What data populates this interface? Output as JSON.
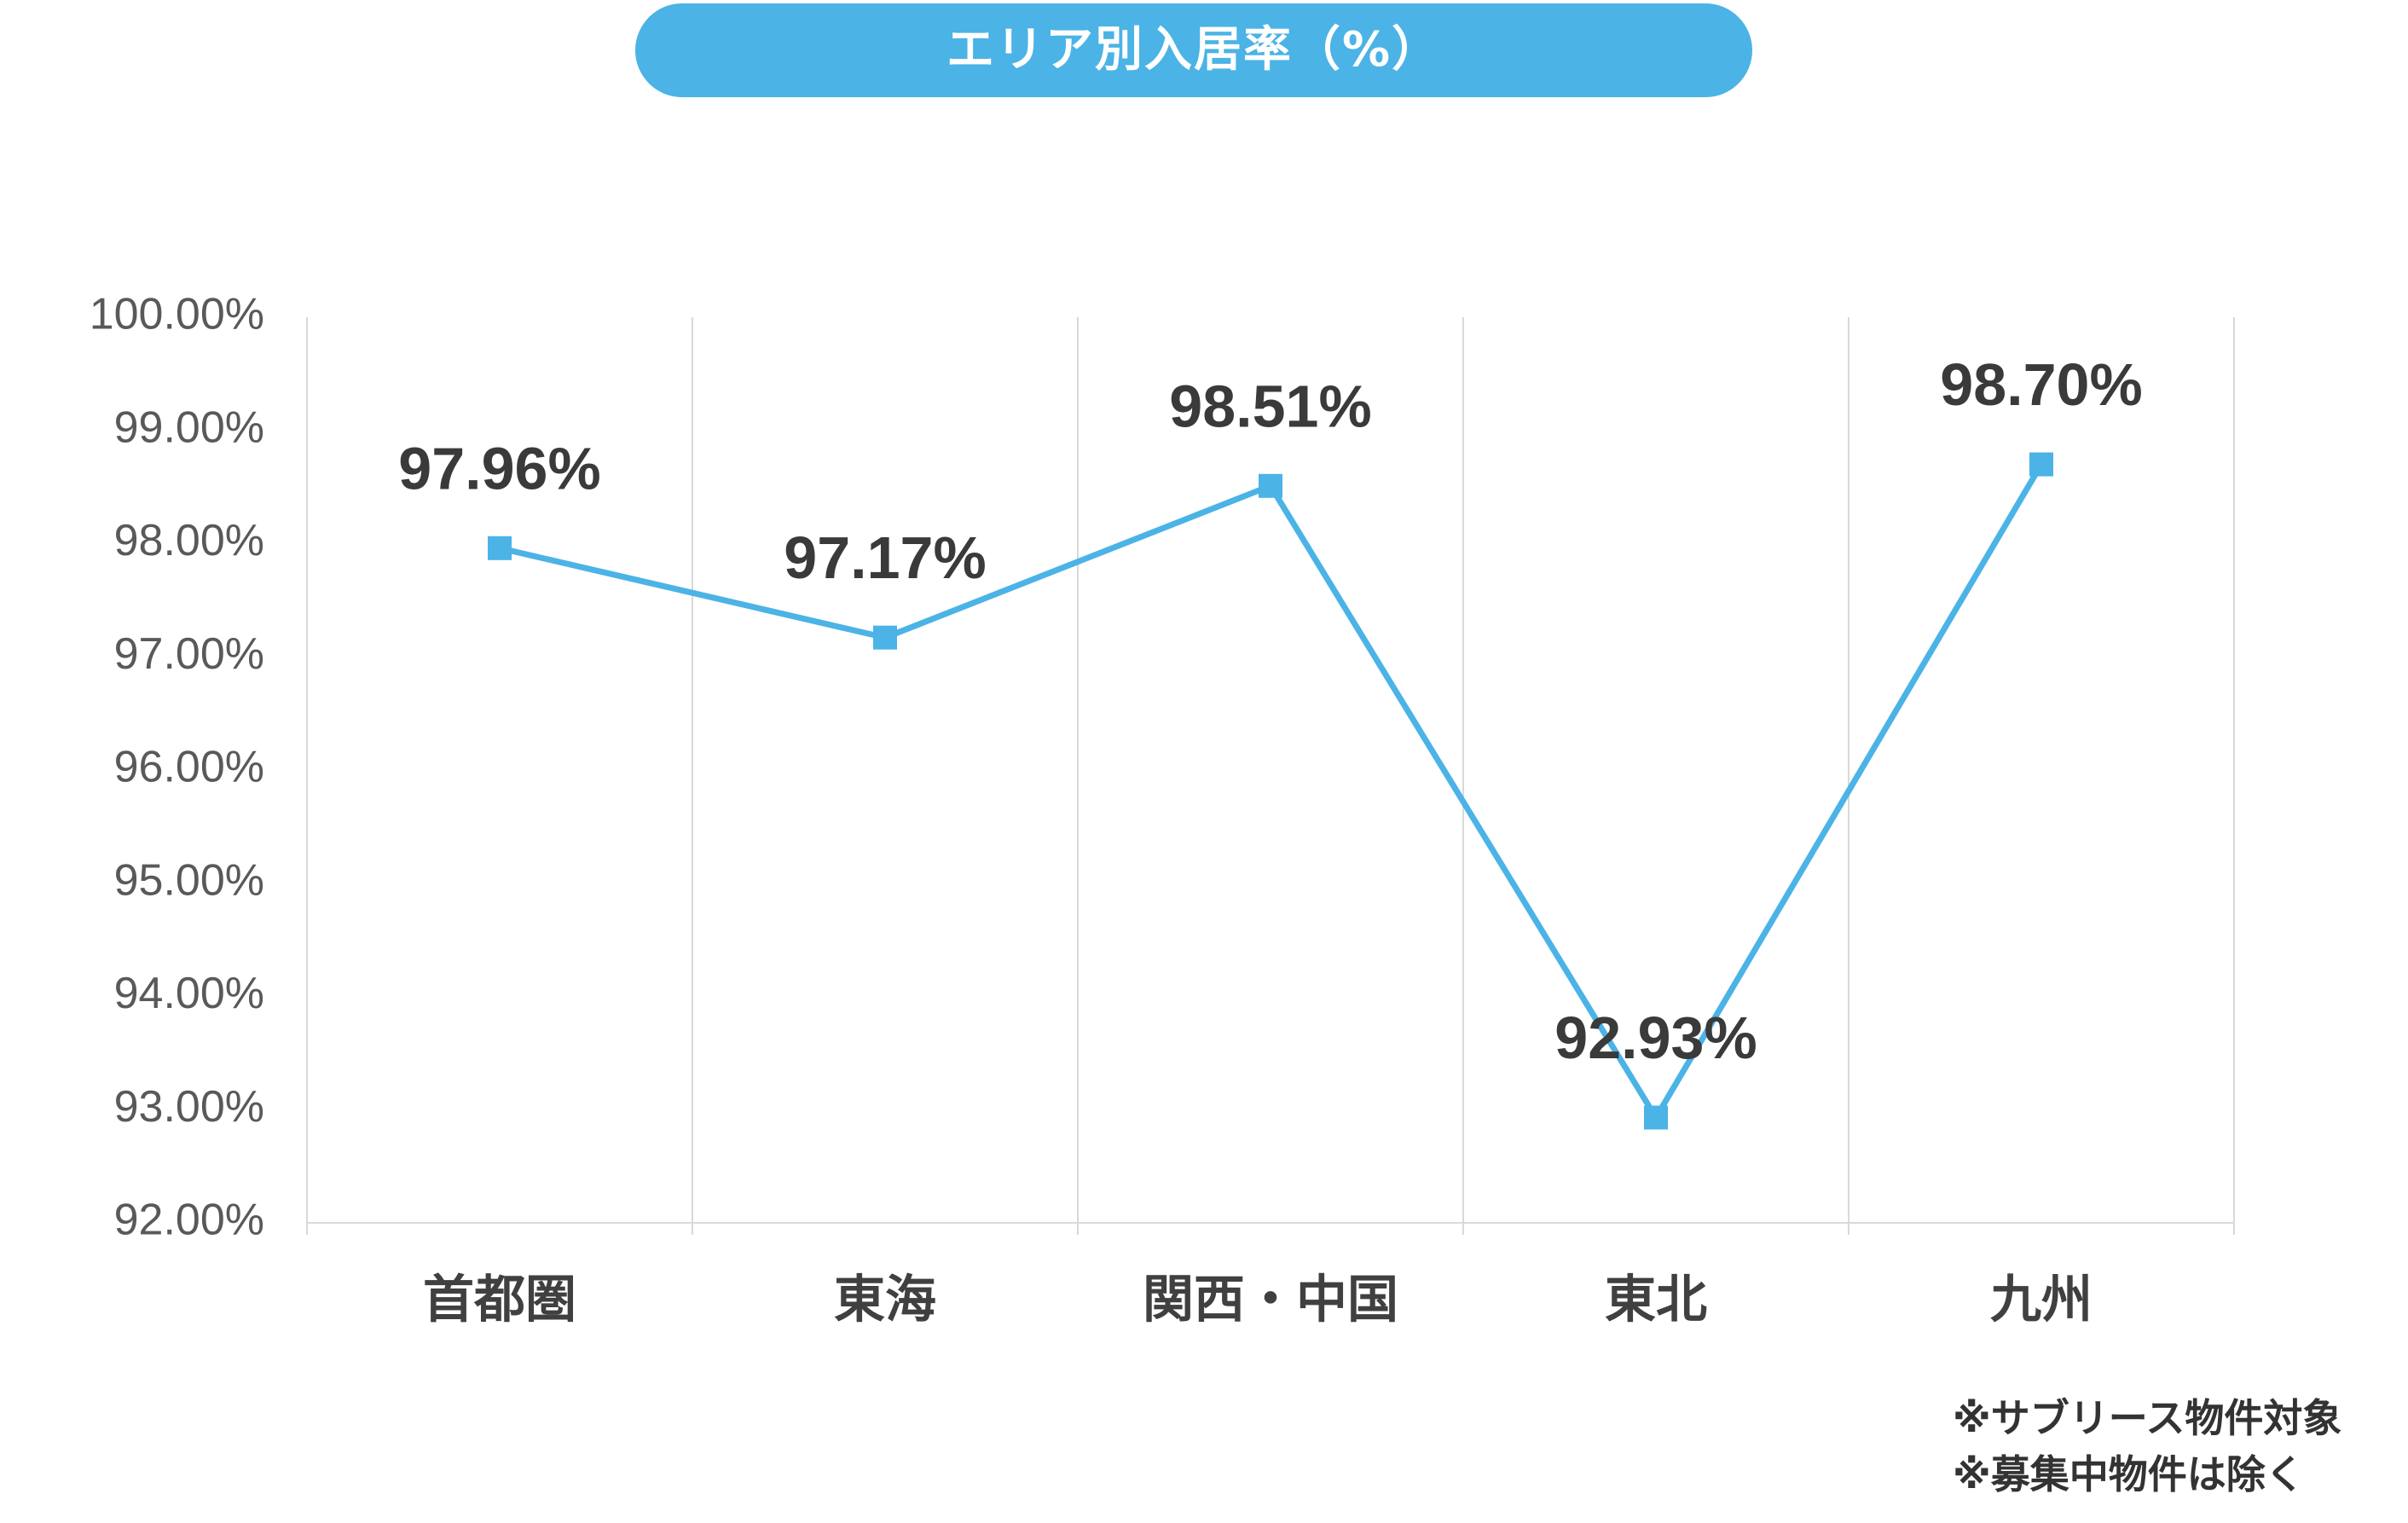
{
  "title": "エリア別入居率（%）",
  "notes": [
    "※サブリース物件対象",
    "※募集中物件は除く"
  ],
  "colors": {
    "title_bg": "#4bb3e6",
    "line": "#4bb3e6",
    "marker": "#4bb3e6",
    "grid": "#d9d9d9"
  },
  "chart_data": {
    "type": "line",
    "title": "エリア別入居率（%）",
    "categories": [
      "首都圏",
      "東海",
      "関西・中国",
      "東北",
      "九州"
    ],
    "series": [
      {
        "values": [
          97.96,
          97.17,
          98.51,
          92.93,
          98.7
        ],
        "labels": [
          "97.96%",
          "97.17%",
          "98.51%",
          "92.93%",
          "98.70%"
        ]
      }
    ],
    "ylim": [
      92,
      100
    ],
    "ytick_labels": [
      "92.00%",
      "93.00%",
      "94.00%",
      "95.00%",
      "96.00%",
      "97.00%",
      "98.00%",
      "99.00%",
      "100.00%"
    ],
    "grid": "vertical",
    "marker": "square",
    "legend": "none"
  }
}
